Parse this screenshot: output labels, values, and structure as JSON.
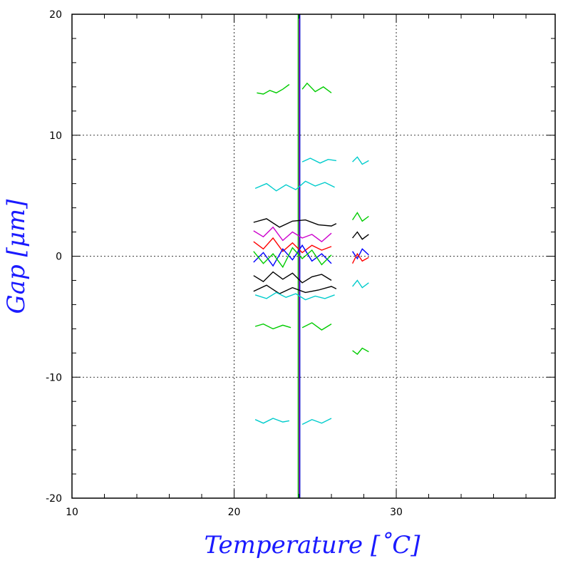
{
  "chart_data": {
    "type": "line",
    "title": "",
    "xlabel": "Temperature [˚C]",
    "ylabel": "Gap [μm]",
    "xlim": [
      10,
      39.8
    ],
    "ylim": [
      -20,
      20
    ],
    "x_ticks": [
      10,
      20,
      30
    ],
    "x_tick_labels": [
      "10",
      "20",
      "30"
    ],
    "y_ticks": [
      -20,
      -10,
      0,
      10,
      20
    ],
    "y_tick_labels": [
      "-20",
      "-10",
      "0",
      "10",
      "20"
    ],
    "grid": true,
    "grid_style": "dotted",
    "legend": "none",
    "series": [
      {
        "color": "#0000cc",
        "x": [
          24.05,
          24.05
        ],
        "y": [
          -20,
          20
        ]
      },
      {
        "color": "#cc00cc",
        "x": [
          24.0,
          24.0
        ],
        "y": [
          -20,
          20
        ]
      },
      {
        "color": "#00cc00",
        "x": [
          23.95,
          23.95
        ],
        "y": [
          -20,
          20
        ]
      },
      {
        "color": "#000000",
        "x": [
          21.2,
          22.0,
          22.8,
          23.6,
          24.4,
          25.2,
          26.0,
          26.3
        ],
        "y": [
          2.8,
          3.1,
          2.4,
          2.9,
          3.0,
          2.6,
          2.5,
          2.7
        ]
      },
      {
        "color": "#000000",
        "x": [
          21.2,
          22.0,
          22.8,
          23.6,
          24.4,
          25.2,
          26.0,
          26.3
        ],
        "y": [
          -2.9,
          -2.4,
          -3.1,
          -2.6,
          -3.0,
          -2.8,
          -2.5,
          -2.7
        ]
      },
      {
        "color": "#00cc00",
        "x": [
          21.4,
          21.8,
          22.2,
          22.6,
          23.0,
          23.4
        ],
        "y": [
          13.5,
          13.4,
          13.7,
          13.5,
          13.8,
          14.2
        ]
      },
      {
        "color": "#00cc00",
        "x": [
          24.2,
          24.5,
          25.0,
          25.5,
          26.0
        ],
        "y": [
          13.8,
          14.3,
          13.6,
          14.0,
          13.5
        ]
      },
      {
        "color": "#00cc00",
        "x": [
          21.3,
          21.8,
          22.4,
          23.0,
          23.5
        ],
        "y": [
          -5.8,
          -5.6,
          -6.0,
          -5.7,
          -5.9
        ]
      },
      {
        "color": "#00cc00",
        "x": [
          24.2,
          24.8,
          25.4,
          26.0
        ],
        "y": [
          -5.9,
          -5.5,
          -6.1,
          -5.6
        ]
      },
      {
        "color": "#00cccc",
        "x": [
          21.3,
          21.8,
          22.4,
          23.0,
          23.4
        ],
        "y": [
          -13.5,
          -13.8,
          -13.4,
          -13.7,
          -13.6
        ]
      },
      {
        "color": "#00cccc",
        "x": [
          24.2,
          24.8,
          25.4,
          26.0
        ],
        "y": [
          -13.9,
          -13.5,
          -13.8,
          -13.4
        ]
      },
      {
        "color": "#00cccc",
        "x": [
          21.3,
          22.0,
          22.6,
          23.2,
          23.8,
          24.4,
          25.0,
          25.6,
          26.2
        ],
        "y": [
          5.6,
          6.0,
          5.4,
          5.9,
          5.5,
          6.2,
          5.8,
          6.1,
          5.7
        ]
      },
      {
        "color": "#00cccc",
        "x": [
          24.2,
          24.7,
          25.3,
          25.8,
          26.3
        ],
        "y": [
          7.8,
          8.1,
          7.7,
          8.0,
          7.9
        ]
      },
      {
        "color": "#00cccc",
        "x": [
          21.3,
          22.0,
          22.6,
          23.2,
          23.8,
          24.4,
          25.0,
          25.6,
          26.2
        ],
        "y": [
          -3.2,
          -3.5,
          -3.0,
          -3.4,
          -3.1,
          -3.6,
          -3.3,
          -3.5,
          -3.2
        ]
      },
      {
        "color": "#ff0000",
        "x": [
          21.2,
          21.8,
          22.4,
          23.0,
          23.6,
          24.2,
          24.8,
          25.4,
          26.0
        ],
        "y": [
          1.2,
          0.6,
          1.5,
          0.4,
          1.1,
          0.3,
          0.9,
          0.5,
          0.8
        ]
      },
      {
        "color": "#0000ff",
        "x": [
          21.2,
          21.8,
          22.4,
          23.0,
          23.6,
          24.2,
          24.8,
          25.4,
          26.0
        ],
        "y": [
          -0.5,
          0.3,
          -0.8,
          0.6,
          -0.3,
          0.9,
          -0.4,
          0.2,
          -0.6
        ]
      },
      {
        "color": "#00cc00",
        "x": [
          21.2,
          21.8,
          22.4,
          23.0,
          23.6,
          24.2,
          24.8,
          25.4,
          26.0
        ],
        "y": [
          0.4,
          -0.6,
          0.2,
          -0.9,
          0.7,
          -0.2,
          0.5,
          -0.7,
          0.1
        ]
      },
      {
        "color": "#cc00cc",
        "x": [
          21.2,
          21.8,
          22.4,
          23.0,
          23.6,
          24.2,
          24.8,
          25.4,
          26.0
        ],
        "y": [
          2.1,
          1.6,
          2.4,
          1.3,
          2.0,
          1.5,
          1.8,
          1.2,
          1.9
        ]
      },
      {
        "color": "#000000",
        "x": [
          21.2,
          21.8,
          22.4,
          23.0,
          23.6,
          24.2,
          24.8,
          25.4,
          26.0
        ],
        "y": [
          -1.6,
          -2.1,
          -1.3,
          -1.9,
          -1.4,
          -2.2,
          -1.7,
          -1.5,
          -2.0
        ]
      },
      {
        "color": "#00cc00",
        "x": [
          27.3,
          27.6,
          27.9,
          28.3
        ],
        "y": [
          3.0,
          3.6,
          2.9,
          3.3
        ]
      },
      {
        "color": "#000000",
        "x": [
          27.3,
          27.6,
          27.9,
          28.3
        ],
        "y": [
          1.5,
          2.0,
          1.4,
          1.8
        ]
      },
      {
        "color": "#0000ff",
        "x": [
          27.3,
          27.6,
          27.9,
          28.3
        ],
        "y": [
          0.4,
          -0.2,
          0.6,
          0.1
        ]
      },
      {
        "color": "#ff0000",
        "x": [
          27.3,
          27.6,
          27.9,
          28.3
        ],
        "y": [
          -0.6,
          0.2,
          -0.4,
          -0.1
        ]
      },
      {
        "color": "#00cccc",
        "x": [
          27.3,
          27.6,
          27.9,
          28.3
        ],
        "y": [
          -2.5,
          -2.0,
          -2.6,
          -2.2
        ]
      },
      {
        "color": "#00cccc",
        "x": [
          27.3,
          27.6,
          27.9,
          28.3
        ],
        "y": [
          7.8,
          8.2,
          7.6,
          7.9
        ]
      },
      {
        "color": "#00cc00",
        "x": [
          27.3,
          27.6,
          27.9,
          28.3
        ],
        "y": [
          -7.8,
          -8.1,
          -7.6,
          -7.9
        ]
      }
    ]
  }
}
